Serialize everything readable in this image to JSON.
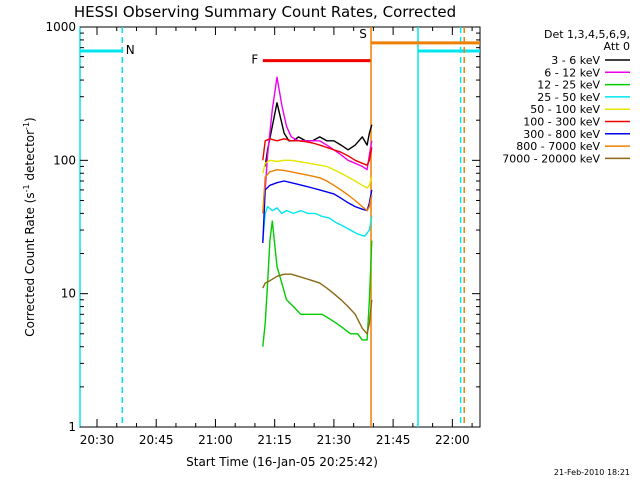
{
  "chart_data": {
    "type": "line",
    "title": "HESSI Observing Summary Count Rates, Corrected",
    "xlabel": "Start Time (16-Jan-05 20:25:42)",
    "ylabel": "Corrected Count Rate (s",
    "ylabel_sup1": "-1",
    "ylabel_mid": " detector",
    "ylabel_sup2": "-1",
    "ylabel_end": ")",
    "y_scale": "log",
    "xlim": [
      20.4283,
      22.1167
    ],
    "ylim": [
      1,
      1000
    ],
    "x_ticks": [
      "20:30",
      "20:45",
      "21:00",
      "21:15",
      "21:30",
      "21:45",
      "22:00"
    ],
    "y_ticks": [
      "1",
      "10",
      "100",
      "1000"
    ],
    "footer": "21-Feb-2010 18:21",
    "legend": {
      "header1": "Det 1,3,4,5,6,9,",
      "header2": "Att 0",
      "position": "right",
      "entries": [
        {
          "label": "3 - 6 keV",
          "color": "#000000"
        },
        {
          "label": "6 - 12 keV",
          "color": "#ee00ee"
        },
        {
          "label": "12 - 25 keV",
          "color": "#00cc00"
        },
        {
          "label": "25 - 50 keV",
          "color": "#00e5ee"
        },
        {
          "label": "50 - 100 keV",
          "color": "#e5e500"
        },
        {
          "label": "100 - 300 keV",
          "color": "#ee0000"
        },
        {
          "label": "300 - 800 keV",
          "color": "#0000ee"
        },
        {
          "label": "800 - 7000 keV",
          "color": "#ee7f00"
        },
        {
          "label": "7000 - 20000 keV",
          "color": "#8b6914"
        }
      ]
    },
    "flags": [
      {
        "label": "N",
        "color": "#00e5ee",
        "ranges": [
          [
            20.4283,
            20.6067
          ],
          [
            21.855,
            22.1167
          ]
        ],
        "value": 660,
        "dash_lines": [
          20.6067,
          22.035
        ],
        "solid_lines": [
          20.4283,
          21.855
        ]
      },
      {
        "label": "F",
        "color": "#ee0000",
        "ranges": [
          [
            21.2,
            21.6567
          ]
        ],
        "value": 560
      },
      {
        "label": "S",
        "color": "#ee7f00",
        "ranges": [
          [
            21.6567,
            22.1167
          ]
        ],
        "value": 760,
        "solid_lines": [
          21.6567
        ],
        "dash_lines": [
          22.05
        ]
      }
    ],
    "series": [
      {
        "name": "3 - 6 keV",
        "color": "#000000",
        "x": [
          21.21,
          21.22,
          21.24,
          21.26,
          21.28,
          21.29,
          21.31,
          21.33,
          21.35,
          21.38,
          21.41,
          21.44,
          21.47,
          21.5,
          21.53,
          21.56,
          21.59,
          21.62,
          21.64,
          21.65,
          21.66
        ],
        "y": [
          90,
          120,
          180,
          270,
          190,
          160,
          140,
          140,
          150,
          140,
          140,
          150,
          140,
          140,
          130,
          120,
          130,
          150,
          130,
          160,
          185
        ]
      },
      {
        "name": "6 - 12 keV",
        "color": "#ee00ee",
        "x": [
          21.21,
          21.22,
          21.24,
          21.26,
          21.28,
          21.3,
          21.32,
          21.35,
          21.38,
          21.41,
          21.44,
          21.47,
          21.5,
          21.53,
          21.56,
          21.59,
          21.62,
          21.64,
          21.65,
          21.66
        ],
        "y": [
          60,
          110,
          240,
          420,
          260,
          180,
          150,
          140,
          140,
          140,
          140,
          130,
          120,
          110,
          100,
          95,
          90,
          85,
          110,
          140
        ]
      },
      {
        "name": "12 - 25 keV",
        "color": "#00cc00",
        "x": [
          21.2,
          21.21,
          21.22,
          21.23,
          21.24,
          21.26,
          21.28,
          21.3,
          21.33,
          21.36,
          21.39,
          21.42,
          21.45,
          21.48,
          21.51,
          21.54,
          21.57,
          21.6,
          21.62,
          21.64,
          21.65,
          21.66
        ],
        "y": [
          4,
          6,
          12,
          25,
          35,
          16,
          12,
          9,
          8,
          7,
          7,
          7,
          7,
          6.5,
          6,
          5.5,
          5,
          5,
          4.5,
          4.5,
          9,
          25
        ]
      },
      {
        "name": "25 - 50 keV",
        "color": "#00e5ee",
        "x": [
          21.2,
          21.21,
          21.22,
          21.24,
          21.26,
          21.28,
          21.3,
          21.33,
          21.36,
          21.39,
          21.42,
          21.45,
          21.48,
          21.51,
          21.54,
          21.57,
          21.6,
          21.63,
          21.65,
          21.66
        ],
        "y": [
          25,
          40,
          45,
          42,
          44,
          40,
          42,
          40,
          42,
          40,
          40,
          38,
          37,
          34,
          32,
          30,
          28,
          27,
          30,
          38
        ]
      },
      {
        "name": "50 - 100 keV",
        "color": "#e5e500",
        "x": [
          21.2,
          21.21,
          21.23,
          21.26,
          21.29,
          21.32,
          21.35,
          21.38,
          21.41,
          21.44,
          21.47,
          21.5,
          21.53,
          21.56,
          21.59,
          21.62,
          21.64,
          21.65,
          21.66
        ],
        "y": [
          80,
          95,
          100,
          98,
          100,
          100,
          98,
          96,
          94,
          92,
          90,
          85,
          80,
          75,
          70,
          65,
          62,
          65,
          75
        ]
      },
      {
        "name": "100 - 300 keV",
        "color": "#ee0000",
        "x": [
          21.2,
          21.21,
          21.23,
          21.26,
          21.29,
          21.32,
          21.35,
          21.38,
          21.41,
          21.44,
          21.47,
          21.5,
          21.53,
          21.56,
          21.59,
          21.62,
          21.64,
          21.65,
          21.66
        ],
        "y": [
          100,
          140,
          145,
          140,
          145,
          140,
          140,
          138,
          135,
          130,
          125,
          120,
          115,
          108,
          100,
          95,
          92,
          100,
          125
        ]
      },
      {
        "name": "300 - 800 keV",
        "color": "#0000ee",
        "x": [
          21.2,
          21.21,
          21.23,
          21.26,
          21.29,
          21.32,
          21.35,
          21.38,
          21.41,
          21.44,
          21.47,
          21.5,
          21.53,
          21.56,
          21.59,
          21.62,
          21.64,
          21.65,
          21.66
        ],
        "y": [
          24,
          60,
          65,
          68,
          70,
          68,
          66,
          64,
          62,
          60,
          58,
          56,
          52,
          48,
          45,
          43,
          42,
          48,
          60
        ]
      },
      {
        "name": "800 - 7000 keV",
        "color": "#ee7f00",
        "x": [
          21.2,
          21.21,
          21.23,
          21.26,
          21.29,
          21.32,
          21.35,
          21.38,
          21.41,
          21.44,
          21.47,
          21.5,
          21.53,
          21.56,
          21.59,
          21.62,
          21.64,
          21.65,
          21.66
        ],
        "y": [
          40,
          75,
          82,
          85,
          84,
          82,
          80,
          78,
          76,
          74,
          70,
          65,
          60,
          55,
          50,
          45,
          42,
          45,
          55
        ]
      },
      {
        "name": "7000 - 20000 keV",
        "color": "#8b6914",
        "x": [
          21.2,
          21.21,
          21.23,
          21.26,
          21.29,
          21.32,
          21.35,
          21.38,
          21.41,
          21.44,
          21.47,
          21.5,
          21.53,
          21.56,
          21.59,
          21.62,
          21.64,
          21.65,
          21.66
        ],
        "y": [
          11,
          12,
          12.5,
          13.5,
          14,
          14,
          13.5,
          13,
          12.5,
          12,
          11,
          10,
          9,
          8,
          7,
          5.5,
          5,
          6,
          9
        ]
      }
    ]
  }
}
